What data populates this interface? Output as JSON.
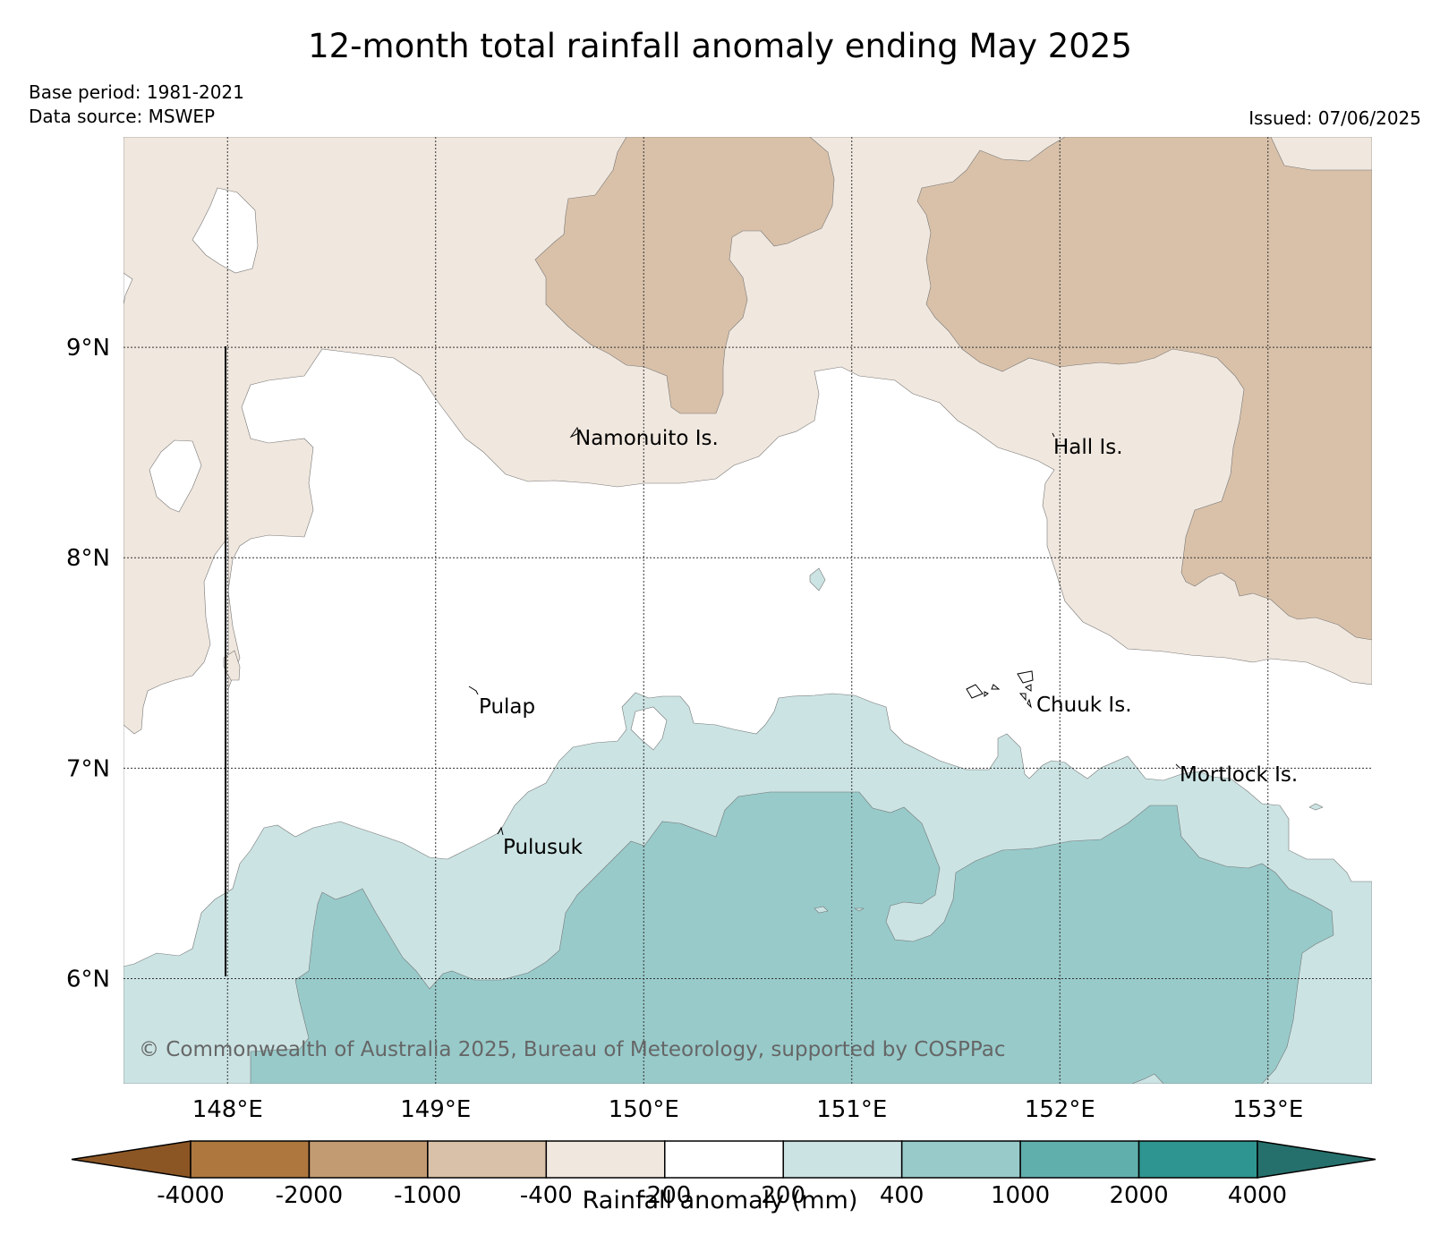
{
  "title": "12-month total rainfall anomaly ending May 2025",
  "base_period": "Base period: 1981-2021",
  "data_source": "Data source: MSWEP",
  "issued": "Issued: 07/06/2025",
  "copyright": "© Commonwealth of Australia 2025, Bureau of Meteorology, supported by COSPPac",
  "map": {
    "lon_range": [
      147.5,
      153.5
    ],
    "lat_range": [
      5.5,
      10.0
    ],
    "lat_ticks": [
      "9°N",
      "8°N",
      "7°N",
      "6°N"
    ],
    "lon_ticks": [
      "148°E",
      "149°E",
      "150°E",
      "151°E",
      "152°E",
      "153°E"
    ],
    "grid": true,
    "islands": [
      {
        "name": "Namonuito Is."
      },
      {
        "name": "Hall Is."
      },
      {
        "name": "Pulap"
      },
      {
        "name": "Chuuk Is."
      },
      {
        "name": "Mortlock Is."
      },
      {
        "name": "Pulusuk"
      }
    ]
  },
  "colorbar": {
    "title": "Rainfall anomaly (mm)",
    "ticks": [
      "-4000",
      "-2000",
      "-1000",
      "-400",
      "-200",
      "200",
      "400",
      "1000",
      "2000",
      "4000"
    ],
    "colors": [
      "#8c5624",
      "#ad773e",
      "#c39b72",
      "#d9c1a9",
      "#f0e7de",
      "#ffffff",
      "#cbe3e3",
      "#98caca",
      "#60afad",
      "#2e9590",
      "#25706c"
    ]
  },
  "chart_data": {
    "type": "heatmap",
    "title": "12-month total rainfall anomaly ending May 2025",
    "units": "mm",
    "bins": [
      {
        "range": "< -4000",
        "color": "#8c5624"
      },
      {
        "range": "-4000 to -2000",
        "color": "#ad773e"
      },
      {
        "range": "-2000 to -1000",
        "color": "#c39b72"
      },
      {
        "range": "-1000 to -400",
        "color": "#d9c1a9"
      },
      {
        "range": "-400 to -200",
        "color": "#f0e7de"
      },
      {
        "range": "-200 to 200",
        "color": "#ffffff"
      },
      {
        "range": "200 to 400",
        "color": "#cbe3e3"
      },
      {
        "range": "400 to 1000",
        "color": "#98caca"
      },
      {
        "range": "1000 to 2000",
        "color": "#60afad"
      },
      {
        "range": "2000 to 4000",
        "color": "#2e9590"
      },
      {
        "range": "> 4000",
        "color": "#25706c"
      }
    ],
    "xlim": [
      147.5,
      153.5
    ],
    "ylim": [
      5.5,
      10.0
    ],
    "xlabel": "",
    "ylabel": ""
  }
}
